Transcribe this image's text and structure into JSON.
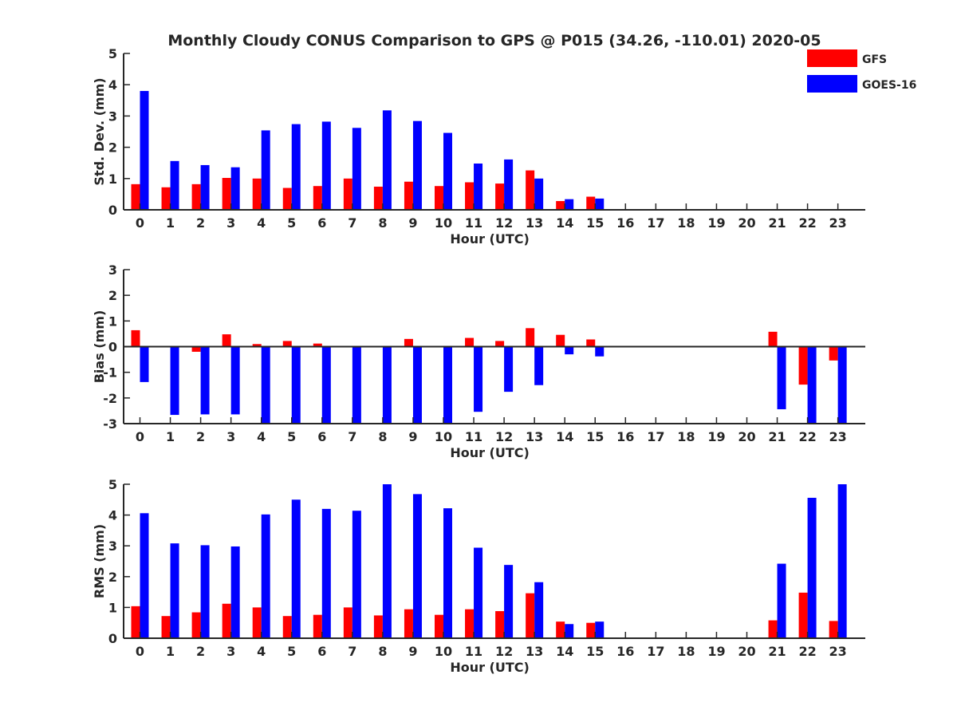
{
  "chart_data": {
    "title": "Monthly Cloudy CONUS Comparison to GPS @ P015 (34.26, -110.01) 2020-05",
    "type": "bar",
    "legend": {
      "placement": "top-right",
      "entries": [
        {
          "label": "GFS",
          "color": "#ff0000"
        },
        {
          "label": "GOES-16",
          "color": "#0000ff"
        }
      ]
    },
    "categories": [
      "0",
      "1",
      "2",
      "3",
      "4",
      "5",
      "6",
      "7",
      "8",
      "9",
      "10",
      "11",
      "12",
      "13",
      "14",
      "15",
      "16",
      "17",
      "18",
      "19",
      "20",
      "21",
      "22",
      "23"
    ],
    "panels": [
      {
        "id": "std",
        "ylabel": "Std. Dev. (mm)",
        "xlabel": "Hour (UTC)",
        "ylim": [
          0,
          5
        ],
        "yticks": [
          0,
          1,
          2,
          3,
          4,
          5
        ],
        "series": [
          {
            "name": "GFS",
            "color": "#ff0000",
            "values": [
              0.82,
              0.72,
              0.82,
              1.02,
              1.0,
              0.7,
              0.76,
              1.0,
              0.74,
              0.9,
              0.76,
              0.88,
              0.84,
              1.26,
              0.28,
              0.42,
              null,
              null,
              null,
              null,
              null,
              null,
              null,
              null
            ]
          },
          {
            "name": "GOES-16",
            "color": "#0000ff",
            "values": [
              3.8,
              1.56,
              1.43,
              1.36,
              2.54,
              2.74,
              2.82,
              2.62,
              3.18,
              2.84,
              2.46,
              1.48,
              1.61,
              1.0,
              0.34,
              0.36,
              null,
              null,
              null,
              null,
              null,
              null,
              null,
              null
            ]
          }
        ]
      },
      {
        "id": "bias",
        "ylabel": "Bias (mm)",
        "xlabel": "Hour (UTC)",
        "ylim": [
          -3,
          3
        ],
        "yticks": [
          -3,
          -2,
          -1,
          0,
          1,
          2,
          3
        ],
        "zero_line": true,
        "series": [
          {
            "name": "GFS",
            "color": "#ff0000",
            "values": [
              0.64,
              0.02,
              -0.2,
              0.48,
              0.1,
              0.22,
              0.12,
              0.0,
              0.0,
              0.3,
              0.0,
              0.34,
              0.22,
              0.72,
              0.46,
              0.28,
              null,
              null,
              null,
              null,
              null,
              0.58,
              -1.48,
              -0.54
            ]
          },
          {
            "name": "GOES-16",
            "color": "#0000ff",
            "values": [
              -1.38,
              -2.66,
              -2.64,
              -2.64,
              -3.0,
              -3.0,
              -3.0,
              -3.0,
              -3.0,
              -3.0,
              -3.0,
              -2.54,
              -1.76,
              -1.5,
              -0.3,
              -0.38,
              null,
              null,
              null,
              null,
              null,
              -2.44,
              -3.0,
              -3.0
            ]
          }
        ]
      },
      {
        "id": "rms",
        "ylabel": "RMS (mm)",
        "xlabel": "Hour (UTC)",
        "ylim": [
          0,
          5
        ],
        "yticks": [
          0,
          1,
          2,
          3,
          4,
          5
        ],
        "series": [
          {
            "name": "GFS",
            "color": "#ff0000",
            "values": [
              1.04,
              0.72,
              0.84,
              1.12,
              1.0,
              0.72,
              0.76,
              1.0,
              0.74,
              0.94,
              0.76,
              0.94,
              0.88,
              1.46,
              0.54,
              0.5,
              null,
              null,
              null,
              null,
              null,
              0.58,
              1.48,
              0.56
            ]
          },
          {
            "name": "GOES-16",
            "color": "#0000ff",
            "values": [
              4.06,
              3.08,
              3.02,
              2.98,
              4.02,
              4.5,
              4.2,
              4.14,
              5.0,
              4.68,
              4.22,
              2.94,
              2.38,
              1.82,
              0.46,
              0.54,
              null,
              null,
              null,
              null,
              null,
              2.42,
              4.56,
              5.0
            ]
          }
        ]
      }
    ]
  }
}
